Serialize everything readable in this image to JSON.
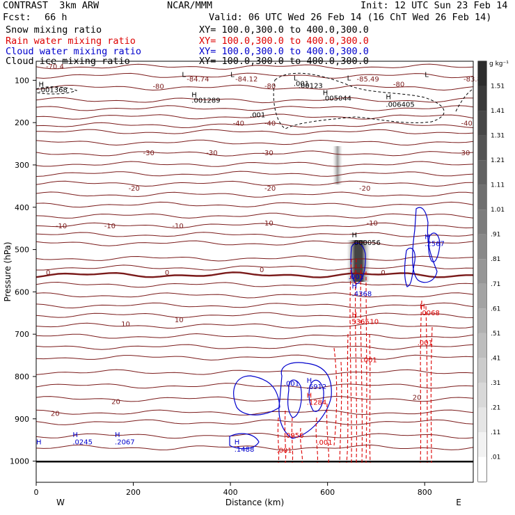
{
  "header": {
    "title": "CONTRAST  3km ARW",
    "institution": "NCAR/MMM",
    "init": "Init: 12 UTC Sun 23 Feb 14",
    "fcst_label": "Fcst:",
    "fcst_value": "66 h",
    "valid": "Valid: 06 UTC Wed 26 Feb 14 (16 ChT Wed 26 Feb 14)",
    "fields": [
      {
        "name": "Snow mixing ratio",
        "xy": "XY= 100.0,300.0 to 400.0,300.0",
        "color": "#000000"
      },
      {
        "name": "Rain water mixing ratio",
        "xy": "XY= 100.0,300.0 to 400.0,300.0",
        "color": "#dd0000"
      },
      {
        "name": "Cloud water mixing ratio",
        "xy": "XY= 100.0,300.0 to 400.0,300.0",
        "color": "#0000cc"
      },
      {
        "name": "Cloud ice mixing ratio",
        "xy": "XY= 100.0,300.0 to 400.0,300.0",
        "color": "#000000"
      }
    ]
  },
  "colorbar": {
    "unit": "g kg⁻¹",
    "levels": [
      ".01",
      ".11",
      ".21",
      ".31",
      ".41",
      ".51",
      ".61",
      ".71",
      ".81",
      ".91",
      "1.01",
      "1.11",
      "1.21",
      "1.31",
      "1.41",
      "1.51"
    ]
  },
  "chart_data": {
    "type": "contour",
    "xlabel": "Distance (km)",
    "ylabel": "Pressure (hPa)",
    "xlim": [
      0,
      900
    ],
    "ylim": [
      1050,
      55
    ],
    "x_ticks": [
      0,
      200,
      400,
      600,
      800
    ],
    "x_tick_labels": [
      "0",
      "200",
      "400",
      "600",
      "800"
    ],
    "y_ticks": [
      100,
      200,
      300,
      400,
      500,
      600,
      700,
      800,
      900,
      1000
    ],
    "y_tick_labels": [
      "100",
      "200",
      "300",
      "400",
      "500",
      "600",
      "700",
      "800",
      "900",
      "1000"
    ],
    "west_label": "W",
    "east_label": "E",
    "temperature_contours": {
      "color": "#7a1a1a",
      "zero_line_pressure": 560,
      "pressures": [
        68,
        89,
        117,
        147,
        166,
        186,
        206,
        222,
        247,
        273,
        298,
        321,
        344,
        370,
        394,
        420,
        443,
        465,
        485,
        521,
        543,
        560,
        583,
        608,
        632,
        655,
        680,
        705,
        730,
        755,
        790,
        822,
        853,
        885,
        908,
        940,
        968
      ],
      "labels": [
        {
          "text": "-70.4",
          "x": 20,
          "p": 73
        },
        {
          "text": "-80",
          "x": 240,
          "p": 120
        },
        {
          "text": "-80",
          "x": 470,
          "p": 119
        },
        {
          "text": "-80",
          "x": 735,
          "p": 115
        },
        {
          "text": "-84.74",
          "x": 310,
          "p": 103
        },
        {
          "text": "-84.12",
          "x": 410,
          "p": 103
        },
        {
          "text": "-85.49",
          "x": 660,
          "p": 103
        },
        {
          "text": "-83.89",
          "x": 880,
          "p": 103
        },
        {
          "text": "-40",
          "x": 405,
          "p": 207
        },
        {
          "text": "-40",
          "x": 470,
          "p": 207
        },
        {
          "text": "-40",
          "x": 875,
          "p": 207
        },
        {
          "text": "-30",
          "x": 220,
          "p": 277
        },
        {
          "text": "-30",
          "x": 350,
          "p": 277
        },
        {
          "text": "-30",
          "x": 465,
          "p": 277
        },
        {
          "text": "-30",
          "x": 870,
          "p": 277
        },
        {
          "text": "-20",
          "x": 190,
          "p": 361
        },
        {
          "text": "-20",
          "x": 470,
          "p": 361
        },
        {
          "text": "-20",
          "x": 665,
          "p": 361
        },
        {
          "text": "-10",
          "x": 40,
          "p": 450
        },
        {
          "text": "-10",
          "x": 140,
          "p": 450
        },
        {
          "text": "-10",
          "x": 280,
          "p": 450
        },
        {
          "text": "-10",
          "x": 465,
          "p": 443
        },
        {
          "text": "-10",
          "x": 680,
          "p": 443
        },
        {
          "text": "0",
          "x": 20,
          "p": 560
        },
        {
          "text": "0",
          "x": 265,
          "p": 560
        },
        {
          "text": "0",
          "x": 460,
          "p": 553
        },
        {
          "text": "0",
          "x": 710,
          "p": 560
        },
        {
          "text": "10",
          "x": 175,
          "p": 682
        },
        {
          "text": "10",
          "x": 285,
          "p": 672
        },
        {
          "text": "20",
          "x": 30,
          "p": 893
        },
        {
          "text": "20",
          "x": 155,
          "p": 865
        },
        {
          "text": "20",
          "x": 775,
          "p": 855
        }
      ]
    },
    "ice_labels": [
      {
        "text": "H",
        "x": 5,
        "p": 115
      },
      {
        "text": ".001368",
        "x": 5,
        "p": 128
      },
      {
        "text": "H",
        "x": 320,
        "p": 140
      },
      {
        "text": ".001289",
        "x": 320,
        "p": 153
      },
      {
        "text": "L",
        "x": 300,
        "p": 92
      },
      {
        "text": "L",
        "x": 400,
        "p": 92
      },
      {
        "text": "L",
        "x": 530,
        "p": 100
      },
      {
        "text": "L",
        "x": 640,
        "p": 100
      },
      {
        "text": "L",
        "x": 800,
        "p": 92
      },
      {
        "text": ".001",
        "x": 440,
        "p": 187
      },
      {
        "text": ".001",
        "x": 530,
        "p": 113
      },
      {
        "text": ".00123",
        "x": 540,
        "p": 118
      },
      {
        "text": "H",
        "x": 590,
        "p": 135
      },
      {
        "text": ".005044",
        "x": 590,
        "p": 148
      },
      {
        "text": "H",
        "x": 720,
        "p": 145
      },
      {
        "text": ".006405",
        "x": 720,
        "p": 163
      },
      {
        "text": "H",
        "x": 650,
        "p": 471
      },
      {
        "text": ".000056",
        "x": 650,
        "p": 489
      }
    ],
    "cloud_water_labels": [
      {
        "text": "H",
        "x": 0,
        "p": 960
      },
      {
        "text": "H",
        "x": 75,
        "p": 943
      },
      {
        "text": ".0245",
        "x": 75,
        "p": 960
      },
      {
        "text": "H",
        "x": 162,
        "p": 943
      },
      {
        "text": ".2067",
        "x": 162,
        "p": 960
      },
      {
        "text": "H",
        "x": 408,
        "p": 960
      },
      {
        "text": ".1488",
        "x": 408,
        "p": 978
      },
      {
        "text": ".001",
        "x": 510,
        "p": 822
      },
      {
        "text": "H",
        "x": 557,
        "p": 815
      },
      {
        "text": ".6912",
        "x": 557,
        "p": 830
      },
      {
        "text": ".001",
        "x": 643,
        "p": 570
      },
      {
        "text": "H",
        "x": 650,
        "p": 592
      },
      {
        "text": ".4368",
        "x": 650,
        "p": 610
      },
      {
        "text": "H",
        "x": 800,
        "p": 475
      },
      {
        "text": ".2567",
        "x": 800,
        "p": 492
      }
    ],
    "rain_labels": [
      {
        "text": "H",
        "x": 650,
        "p": 659
      },
      {
        "text": ".5365",
        "x": 645,
        "p": 676
      },
      {
        "text": "10",
        "x": 687,
        "p": 676
      },
      {
        "text": ".001",
        "x": 670,
        "p": 766
      },
      {
        "text": "H",
        "x": 790,
        "p": 640
      },
      {
        "text": ".0068",
        "x": 790,
        "p": 655
      },
      {
        "text": ".001",
        "x": 785,
        "p": 726
      },
      {
        "text": "H",
        "x": 557,
        "p": 850
      },
      {
        "text": ".1284",
        "x": 557,
        "p": 867
      },
      {
        "text": ".0956",
        "x": 510,
        "p": 945
      },
      {
        "text": ".001",
        "x": 578,
        "p": 961
      },
      {
        "text": ".001",
        "x": 495,
        "p": 980
      }
    ]
  }
}
